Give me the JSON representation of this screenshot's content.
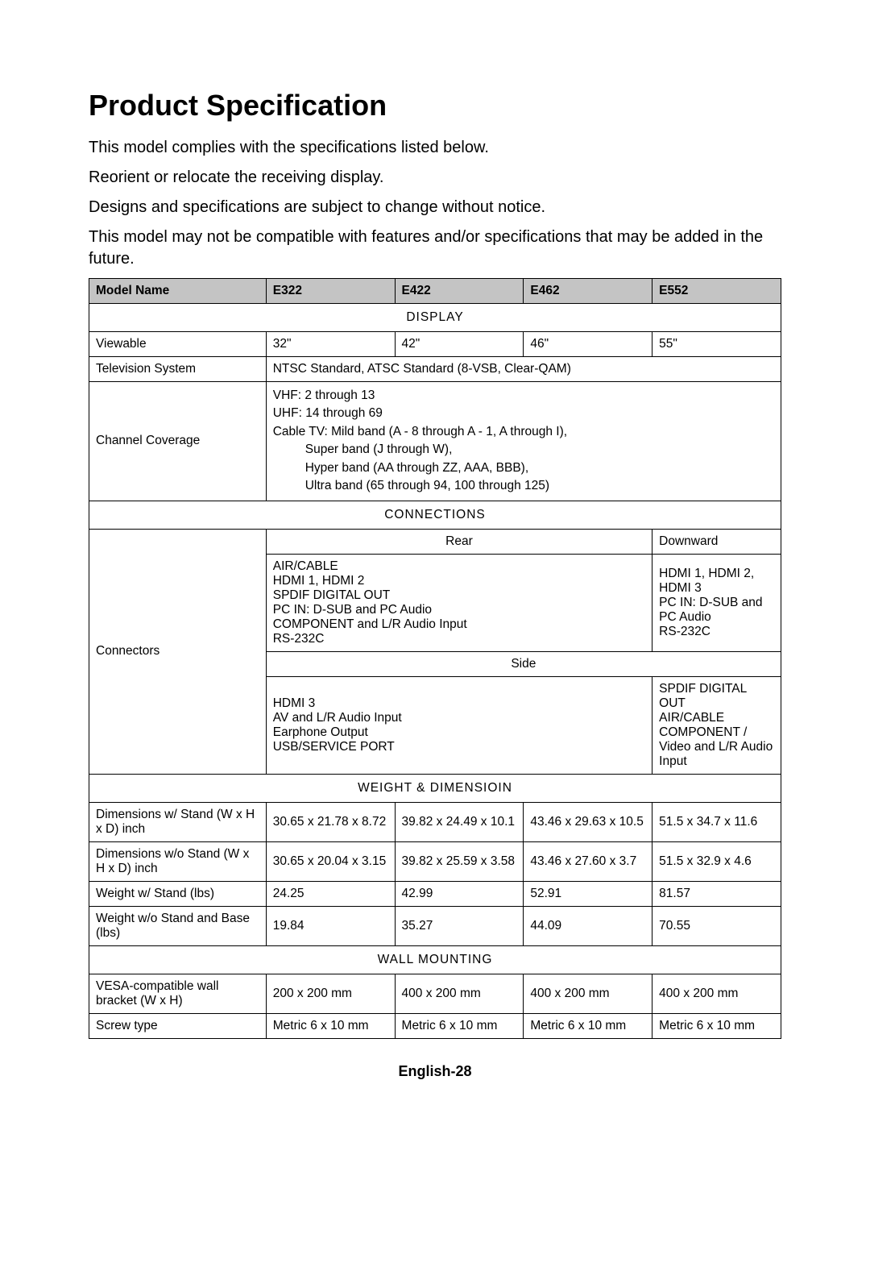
{
  "title": "Product Specification",
  "intro": {
    "l1": "This model complies with the specifications listed below.",
    "l2": "Reorient or relocate the receiving display.",
    "l3": "Designs and specifications are subject to change without notice.",
    "l4": "This model may not be compatible with features and/or specifications that may be added in the future."
  },
  "header": {
    "model_name": "Model Name",
    "m1": "E322",
    "m2": "E422",
    "m3": "E462",
    "m4": "E552"
  },
  "sections": {
    "display": "DISPLAY",
    "connections": "CONNECTIONS",
    "weight_dim": "WEIGHT & DIMENSIOIN",
    "wall": "WALL MOUNTING"
  },
  "display": {
    "viewable_label": "Viewable",
    "viewable": {
      "m1": "32\"",
      "m2": "42\"",
      "m3": "46\"",
      "m4": "55\""
    },
    "tv_system_label": "Television System",
    "tv_system_value": "NTSC Standard, ATSC Standard (8-VSB, Clear-QAM)",
    "channel_label": "Channel Coverage",
    "channel_l1": "VHF: 2 through 13",
    "channel_l2": "UHF: 14 through 69",
    "channel_l3": "Cable TV: Mild band (A - 8 through A - 1, A through I),",
    "channel_l4": "Super band (J through W),",
    "channel_l5": "Hyper band (AA through ZZ, AAA, BBB),",
    "channel_l6": "Ultra band (65 through 94, 100 through 125)"
  },
  "connections": {
    "connectors_label": "Connectors",
    "rear_label": "Rear",
    "downward_label": "Downward",
    "side_label": "Side",
    "rear_main_l1": "AIR/CABLE",
    "rear_main_l2": "HDMI 1, HDMI 2",
    "rear_main_l3": "SPDIF DIGITAL OUT",
    "rear_main_l4": "PC IN: D-SUB and PC Audio",
    "rear_main_l5": "COMPONENT and L/R Audio Input",
    "rear_main_l6": "RS-232C",
    "downward_l1": "HDMI 1, HDMI 2,",
    "downward_l2": "HDMI 3",
    "downward_l3": "PC IN: D-SUB and PC Audio",
    "downward_l4": "RS-232C",
    "side_main_l1": "HDMI 3",
    "side_main_l2": "AV and L/R Audio Input",
    "side_main_l3": "Earphone Output",
    "side_main_l4": "USB/SERVICE PORT",
    "side_right_l1": "SPDIF DIGITAL OUT",
    "side_right_l2": "AIR/CABLE",
    "side_right_l3": "COMPONENT / Video and L/R Audio Input"
  },
  "weight_dim": {
    "dim_stand_label": "Dimensions w/ Stand (W x H x D) inch",
    "dim_stand": {
      "m1": "30.65 x 21.78 x 8.72",
      "m2": "39.82 x 24.49 x 10.1",
      "m3": "43.46 x 29.63 x 10.5",
      "m4": "51.5 x 34.7 x 11.6"
    },
    "dim_nostand_label": "Dimensions w/o Stand (W x H x D) inch",
    "dim_nostand": {
      "m1": "30.65 x 20.04 x 3.15",
      "m2": "39.82 x 25.59 x 3.58",
      "m3": "43.46 x 27.60 x 3.7",
      "m4": "51.5 x 32.9 x 4.6"
    },
    "weight_stand_label": "Weight w/ Stand (lbs)",
    "weight_stand": {
      "m1": "24.25",
      "m2": "42.99",
      "m3": "52.91",
      "m4": "81.57"
    },
    "weight_nostand_label": "Weight w/o Stand and Base (lbs)",
    "weight_nostand": {
      "m1": "19.84",
      "m2": "35.27",
      "m3": "44.09",
      "m4": "70.55"
    }
  },
  "wall": {
    "vesa_label": "VESA-compatible wall bracket (W x H)",
    "vesa": {
      "m1": "200 x 200 mm",
      "m2": "400 x 200 mm",
      "m3": "400 x 200 mm",
      "m4": "400 x 200 mm"
    },
    "screw_label": "Screw type",
    "screw": {
      "m1": "Metric 6 x 10 mm",
      "m2": "Metric 6 x 10 mm",
      "m3": "Metric 6 x 10 mm",
      "m4": "Metric 6 x 10 mm"
    }
  },
  "footer": "English-28"
}
